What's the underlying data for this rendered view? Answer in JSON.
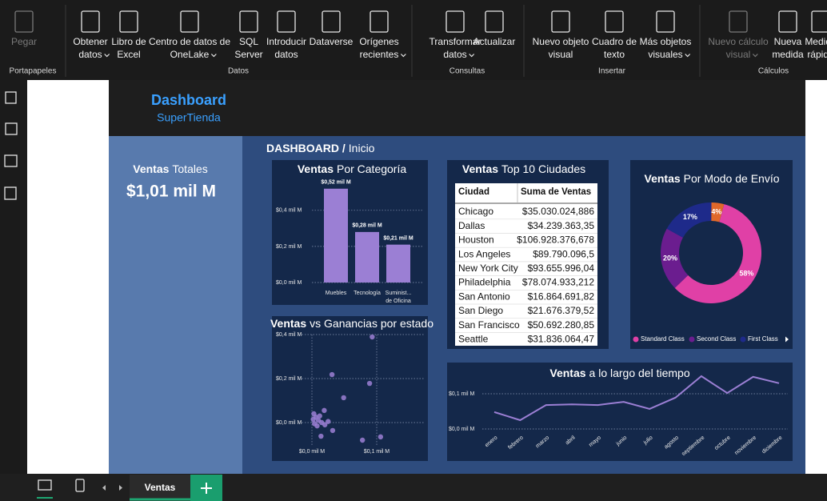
{
  "ribbon": {
    "groups": [
      {
        "label": "Portapapeles",
        "items": [
          {
            "lines": [
              "Pegar"
            ],
            "disabled": true
          }
        ]
      },
      {
        "label": "Datos",
        "items": [
          {
            "lines": [
              "Obtener",
              "datos"
            ],
            "dropdown": true
          },
          {
            "lines": [
              "Libro de",
              "Excel"
            ]
          },
          {
            "lines": [
              "Centro de datos de",
              "OneLake"
            ],
            "dropdown": true
          },
          {
            "lines": [
              "SQL",
              "Server"
            ]
          },
          {
            "lines": [
              "Introducir",
              "datos"
            ]
          },
          {
            "lines": [
              "Dataverse"
            ]
          },
          {
            "lines": [
              "Orígenes",
              "recientes"
            ],
            "dropdown": true
          }
        ]
      },
      {
        "label": "Consultas",
        "items": [
          {
            "lines": [
              "Transformar",
              "datos"
            ],
            "dropdown": true
          },
          {
            "lines": [
              "Actualizar"
            ]
          }
        ]
      },
      {
        "label": "Insertar",
        "items": [
          {
            "lines": [
              "Nuevo objeto",
              "visual"
            ]
          },
          {
            "lines": [
              "Cuadro de",
              "texto"
            ]
          },
          {
            "lines": [
              "Más objetos",
              "visuales"
            ],
            "dropdown": true
          }
        ]
      },
      {
        "label": "Cálculos",
        "items": [
          {
            "lines": [
              "Nuevo cálculo",
              "visual"
            ],
            "dropdown": true,
            "disabled": true
          },
          {
            "lines": [
              "Nueva",
              "medida"
            ]
          },
          {
            "lines": [
              "Medida",
              "rápida"
            ]
          }
        ]
      }
    ]
  },
  "report": {
    "header": {
      "title": "Dashboard",
      "subtitle": "SuperTienda"
    },
    "card": {
      "title_emphasis": "Ventas",
      "title": "Totales",
      "value": "$1,01 mil M"
    },
    "breadcrumb": {
      "emphasis": "DASHBOARD /",
      "text": "Inicio"
    }
  },
  "chart_data": [
    {
      "type": "bar",
      "title_emphasis": "Ventas",
      "title": "Por Categoría",
      "categories": [
        "Muebles",
        "Tecnología",
        "Suminist... de Oficina"
      ],
      "values": [
        0.52,
        0.28,
        0.21
      ],
      "value_labels": [
        "$0,52 mil M",
        "$0,28 mil M",
        "$0,21 mil M"
      ],
      "color": "#9b7fd4",
      "ylim": [
        0,
        0.55
      ],
      "yticks": [
        {
          "value": 0,
          "label": "$0,0 mil M"
        },
        {
          "value": 0.2,
          "label": "$0,2 mil M"
        },
        {
          "value": 0.4,
          "label": "$0,4 mil M"
        }
      ],
      "grid": true
    },
    {
      "type": "table",
      "title_emphasis": "Ventas",
      "title": "Top 10 Ciudades",
      "columns": [
        "Ciudad",
        "Suma de Ventas"
      ],
      "rows": [
        [
          "Chicago",
          "$35.030.024,886"
        ],
        [
          "Dallas",
          "$34.239.363,35"
        ],
        [
          "Houston",
          "$106.928.376,678"
        ],
        [
          "Los Angeles",
          "$89.790.096,5"
        ],
        [
          "New York City",
          "$93.655.996,04"
        ],
        [
          "Philadelphia",
          "$78.074.933,212"
        ],
        [
          "San Antonio",
          "$16.864.691,82"
        ],
        [
          "San Diego",
          "$21.676.379,52"
        ],
        [
          "San Francisco",
          "$50.692.280,85"
        ],
        [
          "Seattle",
          "$31.836.064,47"
        ]
      ]
    },
    {
      "type": "pie",
      "donut": true,
      "title_emphasis": "Ventas",
      "title": "Por Modo de Envío",
      "categories": [
        "Standard Class",
        "Second Class",
        "First Class",
        null
      ],
      "values": [
        58,
        20,
        17,
        4
      ],
      "value_labels": [
        "58%",
        "20%",
        "17%",
        "4%"
      ],
      "colors": [
        "#e040a6",
        "#6b1d8f",
        "#1e2a8a",
        "#e0682a"
      ]
    },
    {
      "type": "scatter",
      "title_emphasis": "Ventas",
      "title": "vs Ganancias por estado",
      "x": [
        0.093,
        0.031,
        0.089,
        0.049,
        0.019,
        0.003,
        0.006,
        0.01,
        0.004,
        0.012,
        0.008,
        0.015,
        0.002,
        0.078,
        0.106,
        0.032,
        0.014,
        0.02,
        0.025
      ],
      "values": [
        0.389,
        0.218,
        0.178,
        0.113,
        0.055,
        0.04,
        0.025,
        0.01,
        -0.005,
        0.03,
        -0.015,
        0.0,
        0.015,
        -0.08,
        -0.065,
        -0.036,
        -0.062,
        -0.01,
        0.005
      ],
      "color": "#9b7fd4",
      "xlim": [
        -0.02,
        0.13
      ],
      "ylim": [
        -0.1,
        0.4
      ],
      "xticks": [
        {
          "value": 0,
          "label": "$0,0 mil M"
        },
        {
          "value": 0.1,
          "label": "$0,1 mil M"
        }
      ],
      "yticks": [
        {
          "value": 0,
          "label": "$0,0 mil M"
        },
        {
          "value": 0.2,
          "label": "$0,2 mil M"
        },
        {
          "value": 0.4,
          "label": "$0,4 mil M"
        }
      ],
      "grid": true
    },
    {
      "type": "line",
      "title_emphasis": "Ventas",
      "title": "a lo largo del tiempo",
      "categories": [
        "enero",
        "febrero",
        "marzo",
        "abril",
        "mayo",
        "junio",
        "julio",
        "agosto",
        "septiembre",
        "octubre",
        "noviembre",
        "diciembre"
      ],
      "values": [
        0.048,
        0.025,
        0.068,
        0.07,
        0.068,
        0.077,
        0.057,
        0.089,
        0.15,
        0.102,
        0.148,
        0.13
      ],
      "color": "#9b7fd4",
      "ylim": [
        0,
        0.16
      ],
      "yticks": [
        {
          "value": 0,
          "label": "$0,0 mil M"
        },
        {
          "value": 0.1,
          "label": "$0,1 mil M"
        }
      ],
      "grid": true
    }
  ],
  "tabs": {
    "pages": [
      "Ventas"
    ]
  }
}
